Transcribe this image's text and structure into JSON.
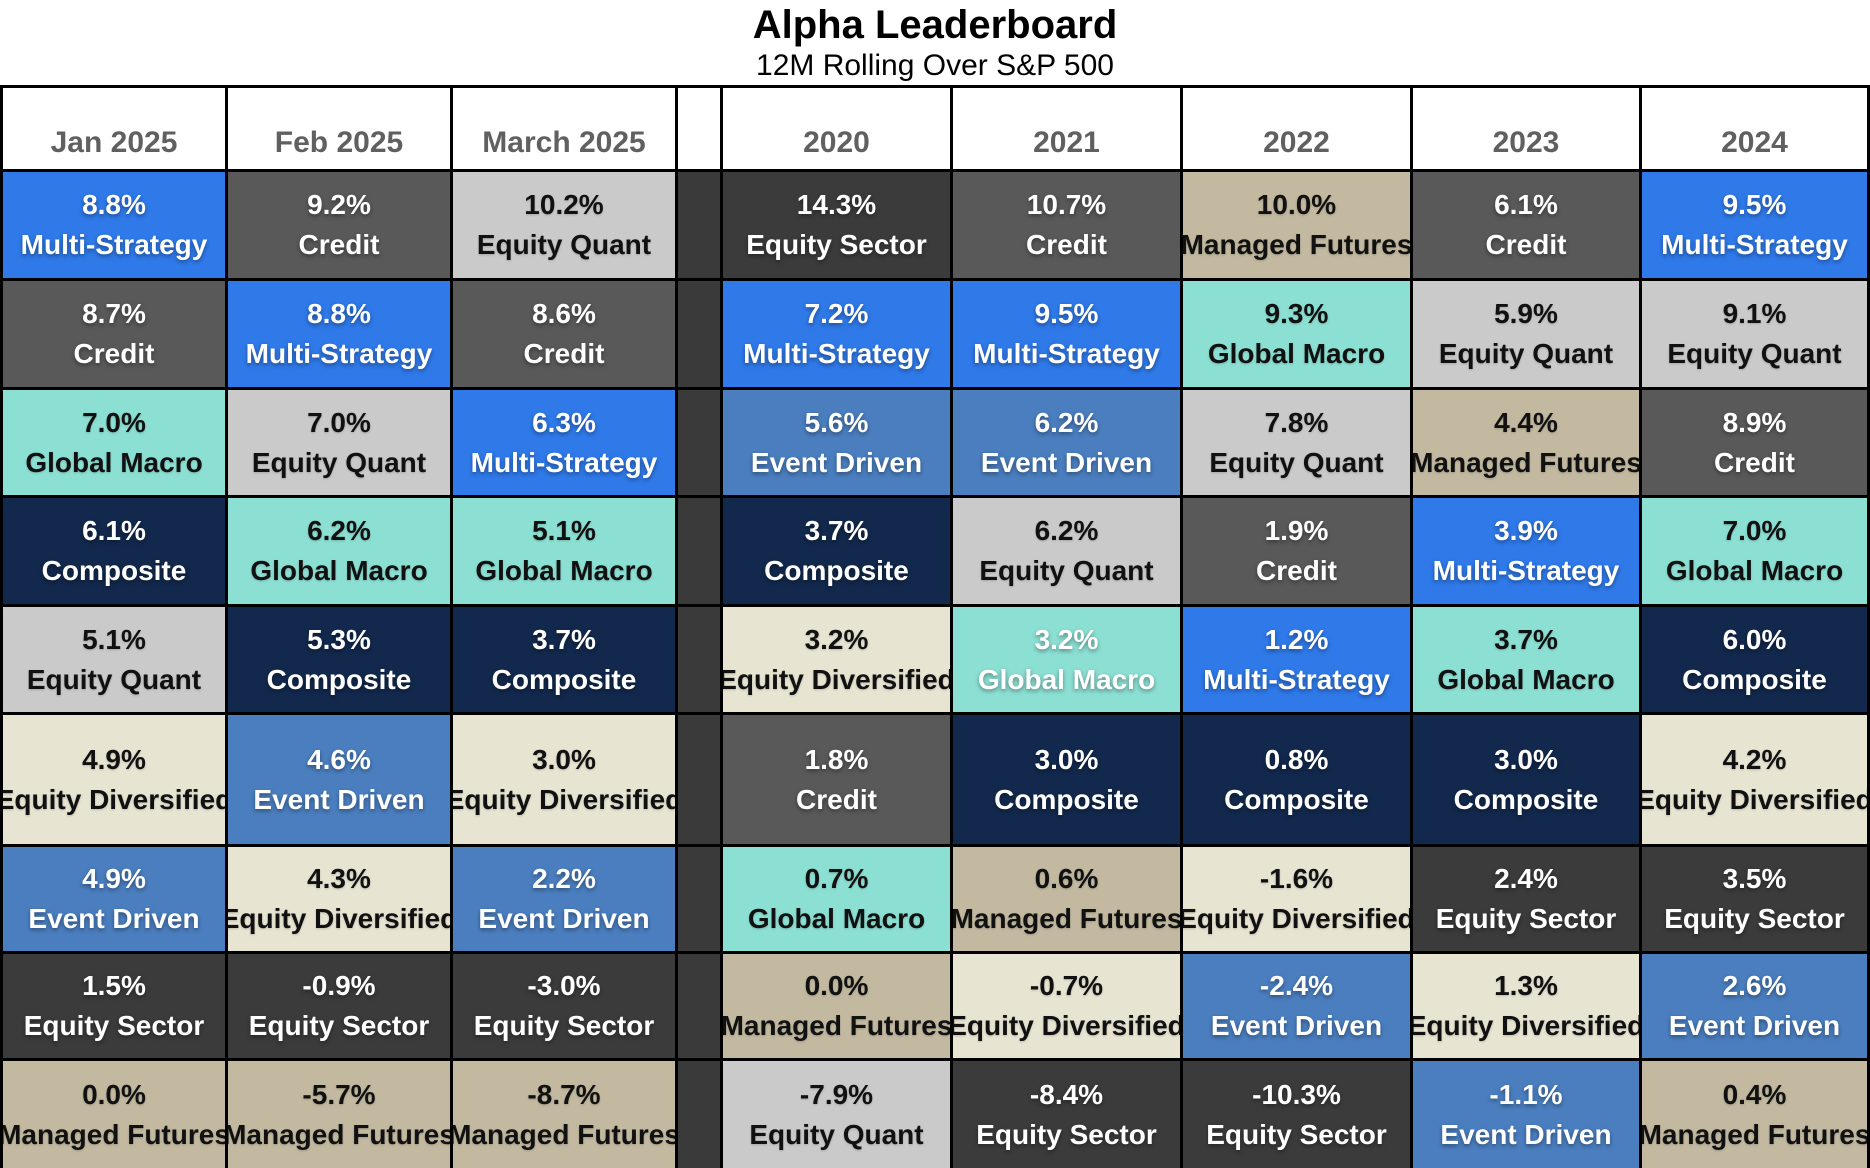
{
  "colors": {
    "border": "#000000",
    "divider_column": "#3A3A3A",
    "header_text": "#606060",
    "title_text": "#000000"
  },
  "strategy_colors": {
    "Multi-Strategy": {
      "bg": "#2F79E9",
      "text": "#FFFFFF"
    },
    "Credit": {
      "bg": "#595959",
      "text": "#FFFFFF"
    },
    "Global Macro": {
      "bg": "#8CDFD3",
      "text": "#111111"
    },
    "Composite": {
      "bg": "#12294D",
      "text": "#FFFFFF"
    },
    "Equity Quant": {
      "bg": "#CACACA",
      "text": "#111111"
    },
    "Equity Diversified": {
      "bg": "#E8E4D2",
      "text": "#111111"
    },
    "Event Driven": {
      "bg": "#4A7EBF",
      "text": "#FFFFFF"
    },
    "Equity Sector": {
      "bg": "#3B3B3B",
      "text": "#FFFFFF"
    },
    "Managed Futures": {
      "bg": "#C2B9A0",
      "text": "#111111"
    }
  },
  "chart_data": {
    "type": "table",
    "title": "Alpha Leaderboard",
    "subtitle": "12M Rolling Over S&P 500",
    "layout_note": "ranked leaderboard grid, columns Jan-Mar 2025 then divider then years 2020-2024, 9 ranked rows per column",
    "columns": [
      {
        "label": "Jan 2025",
        "cells": [
          {
            "value": "8.8%",
            "strategy": "Multi-Strategy"
          },
          {
            "value": "8.7%",
            "strategy": "Credit"
          },
          {
            "value": "7.0%",
            "strategy": "Global Macro"
          },
          {
            "value": "6.1%",
            "strategy": "Composite"
          },
          {
            "value": "5.1%",
            "strategy": "Equity Quant"
          },
          {
            "value": "4.9%",
            "strategy": "Equity Diversified"
          },
          {
            "value": "4.9%",
            "strategy": "Event Driven"
          },
          {
            "value": "1.5%",
            "strategy": "Equity Sector"
          },
          {
            "value": "0.0%",
            "strategy": "Managed Futures"
          }
        ]
      },
      {
        "label": "Feb 2025",
        "cells": [
          {
            "value": "9.2%",
            "strategy": "Credit"
          },
          {
            "value": "8.8%",
            "strategy": "Multi-Strategy"
          },
          {
            "value": "7.0%",
            "strategy": "Equity Quant"
          },
          {
            "value": "6.2%",
            "strategy": "Global Macro"
          },
          {
            "value": "5.3%",
            "strategy": "Composite"
          },
          {
            "value": "4.6%",
            "strategy": "Event Driven"
          },
          {
            "value": "4.3%",
            "strategy": "Equity Diversified"
          },
          {
            "value": "-0.9%",
            "strategy": "Equity Sector"
          },
          {
            "value": "-5.7%",
            "strategy": "Managed Futures"
          }
        ]
      },
      {
        "label": "March 2025",
        "cells": [
          {
            "value": "10.2%",
            "strategy": "Equity Quant"
          },
          {
            "value": "8.6%",
            "strategy": "Credit"
          },
          {
            "value": "6.3%",
            "strategy": "Multi-Strategy"
          },
          {
            "value": "5.1%",
            "strategy": "Global Macro"
          },
          {
            "value": "3.7%",
            "strstrategy_note": "",
            "strategy": "Composite"
          },
          {
            "value": "3.0%",
            "strategy": "Equity Diversified"
          },
          {
            "value": "2.2%",
            "strategy": "Event Driven"
          },
          {
            "value": "-3.0%",
            "strategy": "Equity Sector"
          },
          {
            "value": "-8.7%",
            "strategy": "Managed Futures"
          }
        ]
      },
      {
        "label": "2020",
        "cells": [
          {
            "value": "14.3%",
            "strategy": "Equity Sector"
          },
          {
            "value": "7.2%",
            "strategy": "Multi-Strategy"
          },
          {
            "value": "5.6%",
            "strategy": "Event Driven"
          },
          {
            "value": "3.7%",
            "strategy": "Composite"
          },
          {
            "value": "3.2%",
            "strategy": "Equity Diversified"
          },
          {
            "value": "1.8%",
            "strategy": "Credit"
          },
          {
            "value": "0.7%",
            "strategy": "Global Macro"
          },
          {
            "value": "0.0%",
            "strategy": "Managed Futures"
          },
          {
            "value": "-7.9%",
            "strategy": "Equity Quant"
          }
        ]
      },
      {
        "label": "2021",
        "cells": [
          {
            "value": "10.7%",
            "strategy": "Credit"
          },
          {
            "value": "9.5%",
            "strategy": "Multi-Strategy"
          },
          {
            "value": "6.2%",
            "strategy": "Event Driven"
          },
          {
            "value": "6.2%",
            "strategy": "Equity Quant"
          },
          {
            "value": "3.2%",
            "strategy": "Global Macro",
            "text_color": "#FFFFFF"
          },
          {
            "value": "3.0%",
            "strategy": "Composite"
          },
          {
            "value": "0.6%",
            "strategy": "Managed Futures"
          },
          {
            "value": "-0.7%",
            "strategy": "Equity Diversified"
          },
          {
            "value": "-8.4%",
            "strategy": "Equity Sector"
          }
        ]
      },
      {
        "label": "2022",
        "cells": [
          {
            "value": "10.0%",
            "strategy": "Managed Futures"
          },
          {
            "value": "9.3%",
            "strategy": "Global Macro"
          },
          {
            "value": "7.8%",
            "strategy": "Equity Quant"
          },
          {
            "value": "1.9%",
            "strategy": "Credit"
          },
          {
            "value": "1.2%",
            "strategy": "Multi-Strategy"
          },
          {
            "value": "0.8%",
            "strategy": "Composite"
          },
          {
            "value": "-1.6%",
            "strategy": "Equity Diversified"
          },
          {
            "value": "-2.4%",
            "strategy": "Event Driven"
          },
          {
            "value": "-10.3%",
            "strategy": "Equity Sector"
          }
        ]
      },
      {
        "label": "2023",
        "cells": [
          {
            "value": "6.1%",
            "strategy": "Credit"
          },
          {
            "value": "5.9%",
            "strategy": "Equity Quant"
          },
          {
            "value": "4.4%",
            "strategy": "Managed Futures"
          },
          {
            "value": "3.9%",
            "strategy": "Multi-Strategy"
          },
          {
            "value": "3.7%",
            "strategy": "Global Macro"
          },
          {
            "value": "3.0%",
            "strategy": "Composite"
          },
          {
            "value": "2.4%",
            "strategy": "Equity Sector"
          },
          {
            "value": "1.3%",
            "strategy": "Equity Diversified"
          },
          {
            "value": "-1.1%",
            "strategy": "Event Driven"
          }
        ]
      },
      {
        "label": "2024",
        "cells": [
          {
            "value": "9.5%",
            "strategy": "Multi-Strategy"
          },
          {
            "value": "9.1%",
            "strategy": "Equity Quant"
          },
          {
            "value": "8.9%",
            "strategy": "Credit"
          },
          {
            "value": "7.0%",
            "strategy": "Global Macro"
          },
          {
            "value": "6.0%",
            "strategy": "Composite"
          },
          {
            "value": "4.2%",
            "strategy": "Equity Diversified"
          },
          {
            "value": "3.5%",
            "strategy": "Equity Sector"
          },
          {
            "value": "2.6%",
            "strategy": "Event Driven"
          },
          {
            "value": "0.4%",
            "strategy": "Managed Futures"
          }
        ]
      }
    ]
  }
}
